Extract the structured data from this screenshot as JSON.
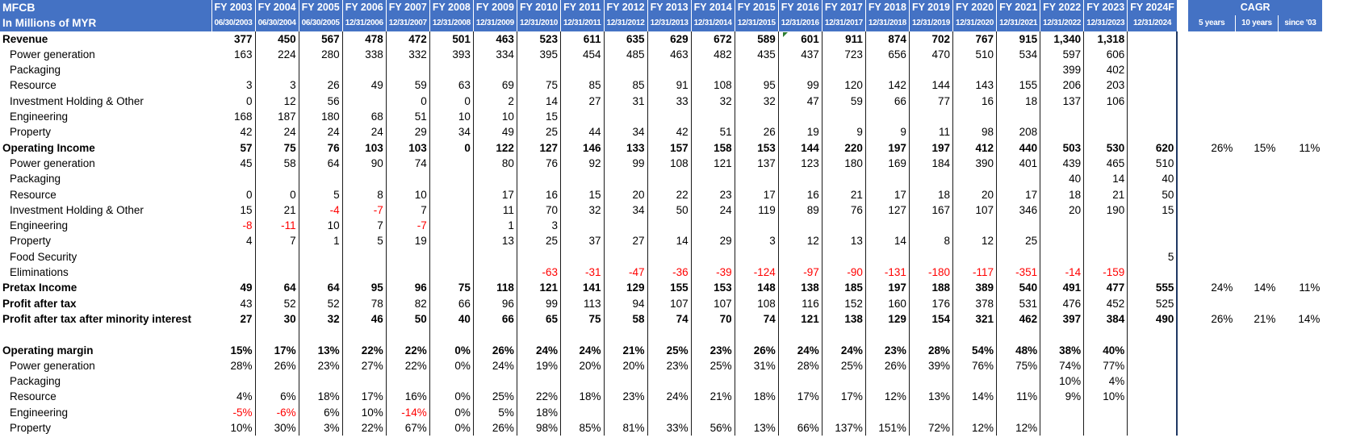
{
  "sheet": {
    "company": "MFCB",
    "units_label": "In Millions of MYR",
    "years": [
      "FY 2003",
      "FY 2004",
      "FY 2005",
      "FY 2006",
      "FY 2007",
      "FY 2008",
      "FY 2009",
      "FY 2010",
      "FY 2011",
      "FY 2012",
      "FY 2013",
      "FY 2014",
      "FY 2015",
      "FY 2016",
      "FY 2017",
      "FY 2018",
      "FY 2019",
      "FY 2020",
      "FY 2021",
      "FY 2022",
      "FY 2023",
      "FY 2024F"
    ],
    "dates": [
      "06/30/2003",
      "06/30/2004",
      "06/30/2005",
      "12/31/2006",
      "12/31/2007",
      "12/31/2008",
      "12/31/2009",
      "12/31/2010",
      "12/31/2011",
      "12/31/2012",
      "12/31/2013",
      "12/31/2014",
      "12/31/2015",
      "12/31/2016",
      "12/31/2017",
      "12/31/2018",
      "12/31/2019",
      "12/31/2020",
      "12/31/2021",
      "12/31/2022",
      "12/31/2023",
      "12/31/2024"
    ],
    "cagr": {
      "title": "CAGR",
      "headers": [
        "5 years",
        "10 years",
        "since '03"
      ]
    },
    "rows": [
      {
        "label": "Revenue",
        "bold": true,
        "indent": false,
        "values": [
          "377",
          "450",
          "567",
          "478",
          "472",
          "501",
          "463",
          "523",
          "611",
          "635",
          "629",
          "672",
          "589",
          "601",
          "911",
          "874",
          "702",
          "767",
          "915",
          "1,340",
          "1,318",
          ""
        ],
        "cagr": [
          "",
          "",
          ""
        ]
      },
      {
        "label": "Power generation",
        "bold": false,
        "indent": true,
        "values": [
          "163",
          "224",
          "280",
          "338",
          "332",
          "393",
          "334",
          "395",
          "454",
          "485",
          "463",
          "482",
          "435",
          "437",
          "723",
          "656",
          "470",
          "510",
          "534",
          "597",
          "606",
          ""
        ],
        "cagr": [
          "",
          "",
          ""
        ]
      },
      {
        "label": "Packaging",
        "bold": false,
        "indent": true,
        "values": [
          "",
          "",
          "",
          "",
          "",
          "",
          "",
          "",
          "",
          "",
          "",
          "",
          "",
          "",
          "",
          "",
          "",
          "",
          "",
          "399",
          "402",
          ""
        ],
        "cagr": [
          "",
          "",
          ""
        ]
      },
      {
        "label": "Resource",
        "bold": false,
        "indent": true,
        "values": [
          "3",
          "3",
          "26",
          "49",
          "59",
          "63",
          "69",
          "75",
          "85",
          "85",
          "91",
          "108",
          "95",
          "99",
          "120",
          "142",
          "144",
          "143",
          "155",
          "206",
          "203",
          ""
        ],
        "cagr": [
          "",
          "",
          ""
        ]
      },
      {
        "label": "Investment Holding & Other",
        "bold": false,
        "indent": true,
        "values": [
          "0",
          "12",
          "56",
          "",
          "0",
          "0",
          "2",
          "14",
          "27",
          "31",
          "33",
          "32",
          "32",
          "47",
          "59",
          "66",
          "77",
          "16",
          "18",
          "137",
          "106",
          ""
        ],
        "cagr": [
          "",
          "",
          ""
        ]
      },
      {
        "label": "Engineering",
        "bold": false,
        "indent": true,
        "values": [
          "168",
          "187",
          "180",
          "68",
          "51",
          "10",
          "10",
          "15",
          "",
          "",
          "",
          "",
          "",
          "",
          "",
          "",
          "",
          "",
          "",
          "",
          "",
          ""
        ],
        "cagr": [
          "",
          "",
          ""
        ]
      },
      {
        "label": "Property",
        "bold": false,
        "indent": true,
        "values": [
          "42",
          "24",
          "24",
          "24",
          "29",
          "34",
          "49",
          "25",
          "44",
          "34",
          "42",
          "51",
          "26",
          "19",
          "9",
          "9",
          "11",
          "98",
          "208",
          "",
          "",
          ""
        ],
        "cagr": [
          "",
          "",
          ""
        ]
      },
      {
        "label": "Operating Income",
        "bold": true,
        "indent": false,
        "values": [
          "57",
          "75",
          "76",
          "103",
          "103",
          "0",
          "122",
          "127",
          "146",
          "133",
          "157",
          "158",
          "153",
          "144",
          "220",
          "197",
          "197",
          "412",
          "440",
          "503",
          "530",
          "620"
        ],
        "cagr": [
          "26%",
          "15%",
          "11%"
        ]
      },
      {
        "label": "Power generation",
        "bold": false,
        "indent": true,
        "values": [
          "45",
          "58",
          "64",
          "90",
          "74",
          "",
          "80",
          "76",
          "92",
          "99",
          "108",
          "121",
          "137",
          "123",
          "180",
          "169",
          "184",
          "390",
          "401",
          "439",
          "465",
          "510"
        ],
        "cagr": [
          "",
          "",
          ""
        ]
      },
      {
        "label": "Packaging",
        "bold": false,
        "indent": true,
        "values": [
          "",
          "",
          "",
          "",
          "",
          "",
          "",
          "",
          "",
          "",
          "",
          "",
          "",
          "",
          "",
          "",
          "",
          "",
          "",
          "40",
          "14",
          "40"
        ],
        "cagr": [
          "",
          "",
          ""
        ]
      },
      {
        "label": "Resource",
        "bold": false,
        "indent": true,
        "values": [
          "0",
          "0",
          "5",
          "8",
          "10",
          "",
          "17",
          "16",
          "15",
          "20",
          "22",
          "23",
          "17",
          "16",
          "21",
          "17",
          "18",
          "20",
          "17",
          "18",
          "21",
          "50"
        ],
        "cagr": [
          "",
          "",
          ""
        ]
      },
      {
        "label": "Investment Holding & Other",
        "bold": false,
        "indent": true,
        "values": [
          "15",
          "21",
          "-4",
          "-7",
          "7",
          "",
          "11",
          "70",
          "32",
          "34",
          "50",
          "24",
          "119",
          "89",
          "76",
          "127",
          "167",
          "107",
          "346",
          "20",
          "190",
          "15"
        ],
        "cagr": [
          "",
          "",
          ""
        ]
      },
      {
        "label": "Engineering",
        "bold": false,
        "indent": true,
        "values": [
          "-8",
          "-11",
          "10",
          "7",
          "-7",
          "",
          "1",
          "3",
          "",
          "",
          "",
          "",
          "",
          "",
          "",
          "",
          "",
          "",
          "",
          "",
          "",
          ""
        ],
        "cagr": [
          "",
          "",
          ""
        ]
      },
      {
        "label": "Property",
        "bold": false,
        "indent": true,
        "values": [
          "4",
          "7",
          "1",
          "5",
          "19",
          "",
          "13",
          "25",
          "37",
          "27",
          "14",
          "29",
          "3",
          "12",
          "13",
          "14",
          "8",
          "12",
          "25",
          "",
          "",
          ""
        ],
        "cagr": [
          "",
          "",
          ""
        ]
      },
      {
        "label": "Food Security",
        "bold": false,
        "indent": true,
        "values": [
          "",
          "",
          "",
          "",
          "",
          "",
          "",
          "",
          "",
          "",
          "",
          "",
          "",
          "",
          "",
          "",
          "",
          "",
          "",
          "",
          "",
          "5"
        ],
        "cagr": [
          "",
          "",
          ""
        ]
      },
      {
        "label": "Eliminations",
        "bold": false,
        "indent": true,
        "values": [
          "",
          "",
          "",
          "",
          "",
          "",
          "",
          "-63",
          "-31",
          "-47",
          "-36",
          "-39",
          "-124",
          "-97",
          "-90",
          "-131",
          "-180",
          "-117",
          "-351",
          "-14",
          "-159",
          ""
        ],
        "cagr": [
          "",
          "",
          ""
        ]
      },
      {
        "label": "Pretax Income",
        "bold": true,
        "indent": false,
        "values": [
          "49",
          "64",
          "64",
          "95",
          "96",
          "75",
          "118",
          "121",
          "141",
          "129",
          "155",
          "153",
          "148",
          "138",
          "185",
          "197",
          "188",
          "389",
          "540",
          "491",
          "477",
          "555"
        ],
        "cagr": [
          "24%",
          "14%",
          "11%"
        ]
      },
      {
        "label": "Profit after tax",
        "bold": true,
        "indent": false,
        "bold_values": false,
        "values": [
          "43",
          "52",
          "52",
          "78",
          "82",
          "66",
          "96",
          "99",
          "113",
          "94",
          "107",
          "107",
          "108",
          "116",
          "152",
          "160",
          "176",
          "378",
          "531",
          "476",
          "452",
          "525"
        ],
        "cagr": [
          "",
          "",
          ""
        ]
      },
      {
        "label": "Profit after tax after minority interest",
        "bold": true,
        "indent": false,
        "values": [
          "27",
          "30",
          "32",
          "46",
          "50",
          "40",
          "66",
          "65",
          "75",
          "58",
          "74",
          "70",
          "74",
          "121",
          "138",
          "129",
          "154",
          "321",
          "462",
          "397",
          "384",
          "490"
        ],
        "cagr": [
          "26%",
          "21%",
          "14%"
        ]
      },
      {
        "label": "",
        "bold": false,
        "indent": false,
        "values": [
          "",
          "",
          "",
          "",
          "",
          "",
          "",
          "",
          "",
          "",
          "",
          "",
          "",
          "",
          "",
          "",
          "",
          "",
          "",
          "",
          "",
          ""
        ],
        "cagr": [
          "",
          "",
          ""
        ]
      },
      {
        "label": "Operating margin",
        "bold": true,
        "indent": false,
        "values": [
          "15%",
          "17%",
          "13%",
          "22%",
          "22%",
          "0%",
          "26%",
          "24%",
          "24%",
          "21%",
          "25%",
          "23%",
          "26%",
          "24%",
          "24%",
          "23%",
          "28%",
          "54%",
          "48%",
          "38%",
          "40%",
          ""
        ],
        "cagr": [
          "",
          "",
          ""
        ]
      },
      {
        "label": "Power generation",
        "bold": false,
        "indent": true,
        "values": [
          "28%",
          "26%",
          "23%",
          "27%",
          "22%",
          "0%",
          "24%",
          "19%",
          "20%",
          "20%",
          "23%",
          "25%",
          "31%",
          "28%",
          "25%",
          "26%",
          "39%",
          "76%",
          "75%",
          "74%",
          "77%",
          ""
        ],
        "cagr": [
          "",
          "",
          ""
        ]
      },
      {
        "label": "Packaging",
        "bold": false,
        "indent": true,
        "values": [
          "",
          "",
          "",
          "",
          "",
          "",
          "",
          "",
          "",
          "",
          "",
          "",
          "",
          "",
          "",
          "",
          "",
          "",
          "",
          "10%",
          "4%",
          ""
        ],
        "cagr": [
          "",
          "",
          ""
        ]
      },
      {
        "label": "Resource",
        "bold": false,
        "indent": true,
        "values": [
          "4%",
          "6%",
          "18%",
          "17%",
          "16%",
          "0%",
          "25%",
          "22%",
          "18%",
          "23%",
          "24%",
          "21%",
          "18%",
          "17%",
          "17%",
          "12%",
          "13%",
          "14%",
          "11%",
          "9%",
          "10%",
          ""
        ],
        "cagr": [
          "",
          "",
          ""
        ]
      },
      {
        "label": "Engineering",
        "bold": false,
        "indent": true,
        "values": [
          "-5%",
          "-6%",
          "6%",
          "10%",
          "-14%",
          "0%",
          "5%",
          "18%",
          "",
          "",
          "",
          "",
          "",
          "",
          "",
          "",
          "",
          "",
          "",
          "",
          "",
          ""
        ],
        "cagr": [
          "",
          "",
          ""
        ]
      },
      {
        "label": "Property",
        "bold": false,
        "indent": true,
        "values": [
          "10%",
          "30%",
          "3%",
          "22%",
          "67%",
          "0%",
          "26%",
          "98%",
          "85%",
          "81%",
          "33%",
          "56%",
          "13%",
          "66%",
          "137%",
          "151%",
          "72%",
          "12%",
          "12%",
          "",
          "",
          ""
        ],
        "cagr": [
          "",
          "",
          ""
        ]
      }
    ]
  }
}
